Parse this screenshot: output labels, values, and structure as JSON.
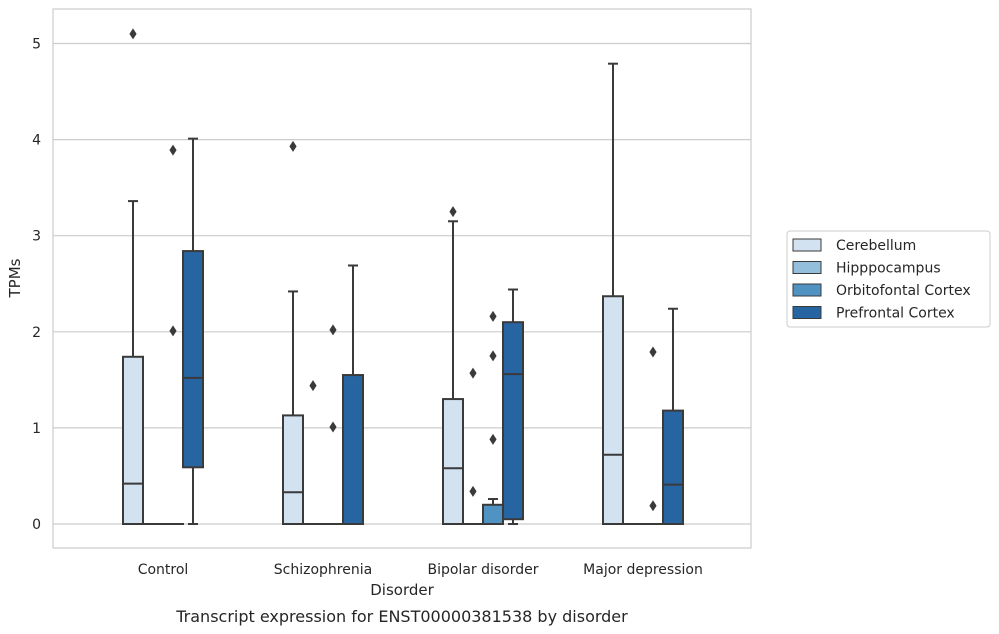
{
  "chart_data": {
    "type": "boxplot",
    "title": "Transcript expression for ENST00000381538 by disorder",
    "xlabel": "Disorder",
    "ylabel": "TPMs",
    "ylim": [
      -0.25,
      5.35
    ],
    "yticks": [
      0,
      1,
      2,
      3,
      4,
      5
    ],
    "grid": "horizontal",
    "legend_position": "right",
    "categories": [
      "Control",
      "Schizophrenia",
      "Bipolar disorder",
      "Major depression"
    ],
    "series": [
      {
        "name": "Cerebellum",
        "color": "#d3e2f1",
        "boxes": [
          {
            "whislo": 0,
            "q1": 0,
            "med": 0.42,
            "q3": 1.74,
            "whishi": 3.36,
            "fliers": [
              5.1
            ]
          },
          {
            "whislo": 0,
            "q1": 0,
            "med": 0.33,
            "q3": 1.13,
            "whishi": 2.42,
            "fliers": [
              3.93
            ]
          },
          {
            "whislo": 0,
            "q1": 0,
            "med": 0.58,
            "q3": 1.3,
            "whishi": 3.15,
            "fliers": [
              3.25
            ]
          },
          {
            "whislo": 0,
            "q1": 0,
            "med": 0.72,
            "q3": 2.37,
            "whishi": 4.79,
            "fliers": []
          }
        ]
      },
      {
        "name": "Hipppocampus",
        "color": "#94bfdc",
        "boxes": [
          {
            "whislo": 0,
            "q1": 0,
            "med": 0,
            "q3": 0,
            "whishi": 0,
            "fliers": []
          },
          {
            "whislo": 0,
            "q1": 0,
            "med": 0,
            "q3": 0,
            "whishi": 0,
            "fliers": [
              1.44
            ]
          },
          {
            "whislo": 0,
            "q1": 0,
            "med": 0,
            "q3": 0,
            "whishi": 0,
            "fliers": [
              0.34,
              1.57
            ]
          },
          {
            "whislo": 0,
            "q1": 0,
            "med": 0,
            "q3": 0,
            "whishi": 0,
            "fliers": []
          }
        ]
      },
      {
        "name": "Orbitofontal Cortex",
        "color": "#5092c1",
        "boxes": [
          {
            "whislo": 0,
            "q1": 0,
            "med": 0,
            "q3": 0,
            "whishi": 0,
            "fliers": [
              2.01,
              3.89
            ]
          },
          {
            "whislo": 0,
            "q1": 0,
            "med": 0,
            "q3": 0,
            "whishi": 0,
            "fliers": [
              1.01,
              2.02
            ]
          },
          {
            "whislo": 0,
            "q1": 0,
            "med": 0,
            "q3": 0.2,
            "whishi": 0.26,
            "fliers": [
              0.88,
              1.75,
              2.16
            ]
          },
          {
            "whislo": 0,
            "q1": 0,
            "med": 0,
            "q3": 0,
            "whishi": 0,
            "fliers": [
              0.19,
              1.79
            ]
          }
        ]
      },
      {
        "name": "Prefrontal Cortex",
        "color": "#2764a2",
        "boxes": [
          {
            "whislo": 0,
            "q1": 0.59,
            "med": 1.52,
            "q3": 2.84,
            "whishi": 4.01,
            "fliers": []
          },
          {
            "whislo": 0,
            "q1": 0,
            "med": 0,
            "q3": 1.55,
            "whishi": 2.69,
            "fliers": []
          },
          {
            "whislo": 0,
            "q1": 0.05,
            "med": 1.56,
            "q3": 2.1,
            "whishi": 2.44,
            "fliers": []
          },
          {
            "whislo": 0,
            "q1": 0,
            "med": 0.41,
            "q3": 1.18,
            "whishi": 2.24,
            "fliers": []
          }
        ]
      }
    ]
  }
}
